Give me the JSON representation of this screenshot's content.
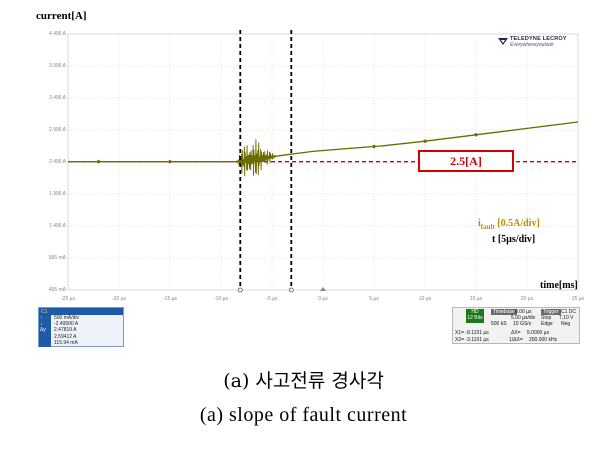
{
  "y_axis_title": "current[A]",
  "x_axis_title": "time[ms]",
  "y_ticks": [
    "4.495 A",
    "3.995 A",
    "3.495 A",
    "2.995 A",
    "2.495 A",
    "1.995 A",
    "1.495 A",
    "995 mA",
    "495 mA"
  ],
  "x_ticks": [
    "-25 µs",
    "-20 µs",
    "-15 µs",
    "-10 µs",
    "-5 µs",
    "0 µs",
    "5 µs",
    "10 µs",
    "15 µs",
    "20 µs",
    "25 µs"
  ],
  "logo": {
    "brand": "TELEDYNE LECROY",
    "tagline": "Everywhereyoulook"
  },
  "fault_annotation": "2.5[A]",
  "ifault_label": {
    "prefix": "i",
    "sub": "fault",
    "suffix": " [0.5A/div]"
  },
  "tdiv_label": "t [5µs/div]",
  "colors": {
    "trace": "#6b6b00",
    "reference": "#d40000",
    "cursor": "#000000",
    "grid": "#d8d8d8"
  },
  "channel_panel": {
    "name": "C1",
    "rows": [
      {
        "key": "",
        "value": "500 mA/div"
      },
      {
        "key": "",
        "value": "-2.49500 A"
      },
      {
        "key": "↑",
        "value": "2.47819 A"
      },
      {
        "key": "↓",
        "value": "2.59412 A"
      },
      {
        "key": "Δy",
        "value": "115.94 mA"
      }
    ]
  },
  "timebase_panel": {
    "mode": "HD",
    "bits": "12 Bits",
    "timebase_label": "Timebase",
    "timebase_offset": "0.00 µs",
    "time_div": "5.00 µs/div",
    "samples": "500 kS",
    "rate": "10 GS/s",
    "trigger_label": "Trigger",
    "trigger_flags": "C1 DC",
    "trigger_mode": "Stop",
    "trigger_level": "7.10 V",
    "trigger_type": "Edge",
    "trigger_slope": "Neg",
    "x1": "X1= -8.1101 µs",
    "dx": "ΔX=",
    "dx_val": "5.0000 µs",
    "x2": "X2= -3.1101 µs",
    "inv_dx": "1/ΔX=",
    "inv_dx_val": "200.000 kHz"
  },
  "chart_data": {
    "type": "line",
    "x_unit": "µs",
    "y_unit": "A",
    "xlim": [
      -25,
      25
    ],
    "ylim": [
      0.495,
      4.495
    ],
    "reference_level": 2.5,
    "cursors_x": [
      -8.11,
      -3.11
    ],
    "series": [
      {
        "x": [
          -25,
          -15,
          -8.5,
          -6,
          -4,
          -3,
          -1,
          2,
          6,
          10,
          15,
          20,
          25
        ],
        "y": [
          2.5,
          2.5,
          2.5,
          2.55,
          2.6,
          2.62,
          2.66,
          2.7,
          2.75,
          2.82,
          2.92,
          3.02,
          3.12
        ]
      }
    ],
    "oscillation": {
      "x_start": -8.5,
      "x_end": -3.0,
      "peak_amplitude": 0.55
    },
    "grid": true
  }
}
